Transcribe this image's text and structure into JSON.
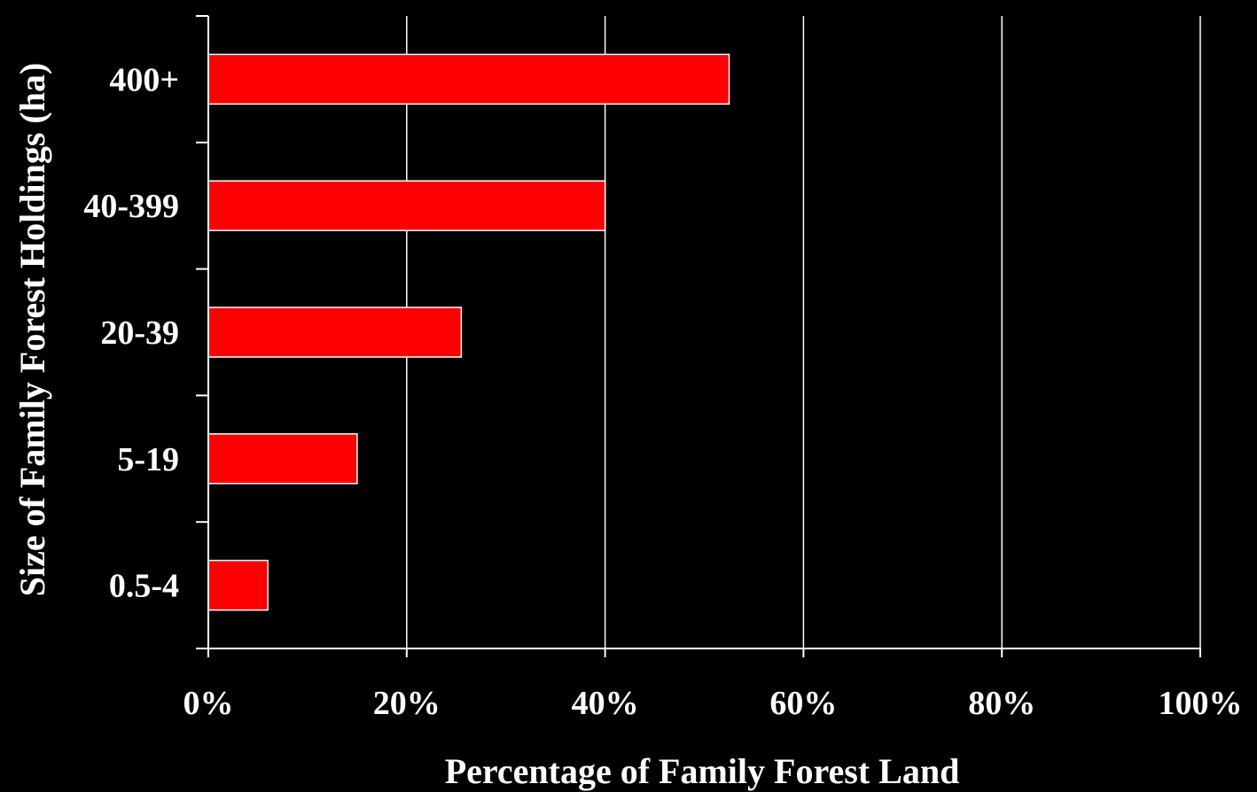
{
  "colors": {
    "background": "#000000",
    "bar_fill": "#ff0000",
    "bar_stroke": "#ffffff",
    "axis": "#ffffff",
    "grid": "#ffffff",
    "text": "#ffffff"
  },
  "chart_data": {
    "type": "bar",
    "orientation": "horizontal",
    "categories": [
      "0.5-4",
      "5-19",
      "20-39",
      "40-399",
      "400+"
    ],
    "values": [
      6,
      15,
      25.5,
      40,
      52.5
    ],
    "xlabel": "Percentage of Family Forest Land",
    "ylabel": "Size of Family Forest Holdings (ha)",
    "xlim": [
      0,
      100
    ],
    "xticks": [
      0,
      20,
      40,
      60,
      80,
      100
    ],
    "xtick_labels": [
      "0%",
      "20%",
      "40%",
      "60%",
      "80%",
      "100%"
    ],
    "grid": "vertical",
    "legend": "none"
  }
}
